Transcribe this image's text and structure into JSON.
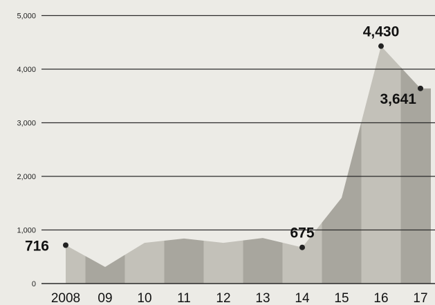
{
  "chart_data": {
    "type": "area",
    "x": [
      "2008",
      "09",
      "10",
      "11",
      "12",
      "13",
      "14",
      "15",
      "16",
      "17"
    ],
    "values": [
      716,
      310,
      760,
      840,
      760,
      850,
      675,
      1600,
      4430,
      3641
    ],
    "labeled_points": [
      {
        "index": 0,
        "label": "716"
      },
      {
        "index": 6,
        "label": "675"
      },
      {
        "index": 8,
        "label": "4,430"
      },
      {
        "index": 9,
        "label": "3,641"
      }
    ],
    "yticks": [
      "0",
      "1,000",
      "2,000",
      "3,000",
      "4,000",
      "5,000"
    ],
    "ytick_values": [
      0,
      1000,
      2000,
      3000,
      4000,
      5000
    ],
    "ylim": [
      0,
      5000
    ],
    "grid": true,
    "colors": {
      "background": "#ecebe6",
      "area_light": "#c3c1b9",
      "area_dark": "#a8a69e",
      "grid": "#2a2a2a",
      "point": "#222222",
      "label_on_area": "#ffffff"
    }
  }
}
